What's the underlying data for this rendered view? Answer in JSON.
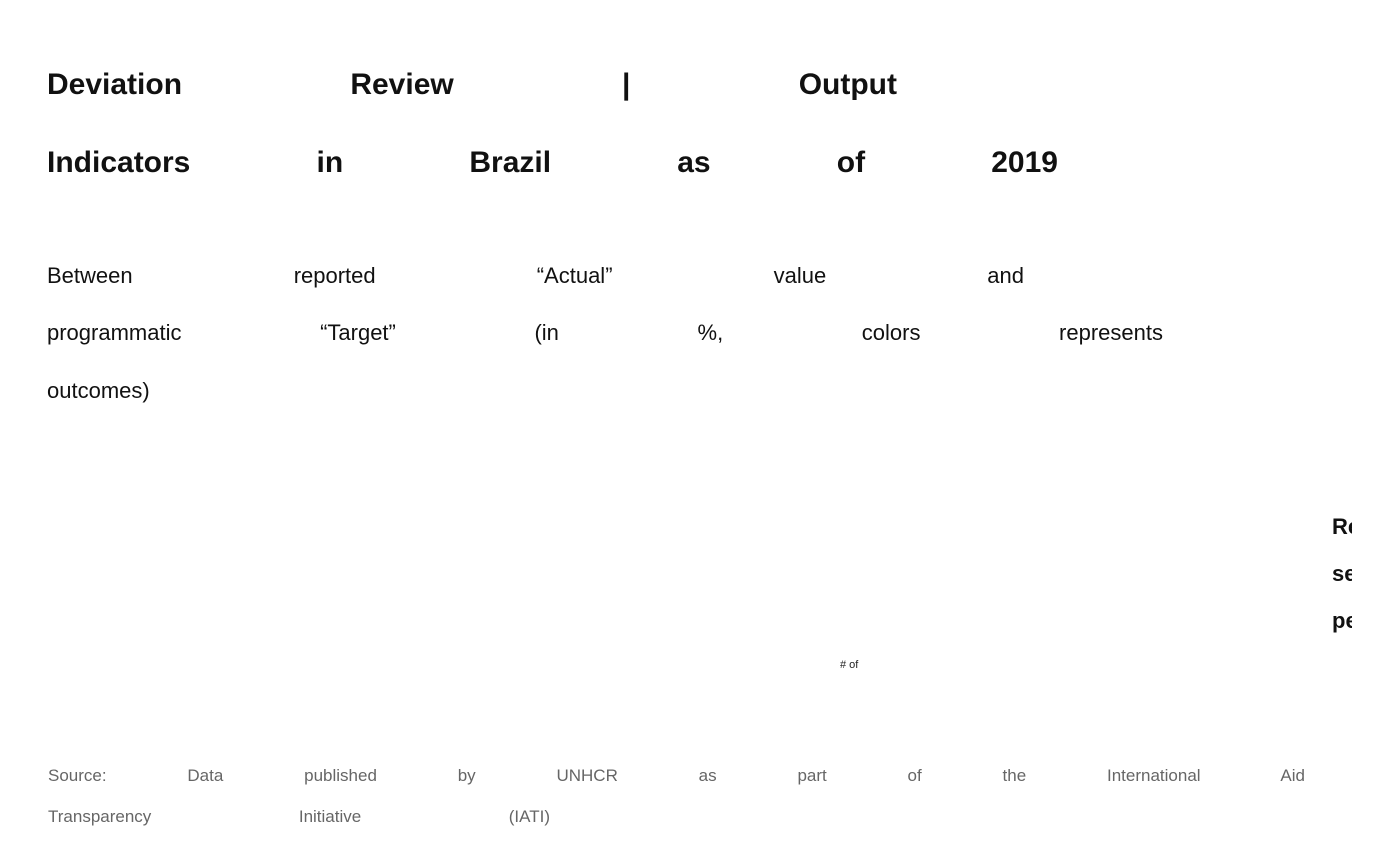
{
  "header": {
    "title_lines": [
      "Deviation Review | Output",
      "Indicators in Brazil as of 2019"
    ],
    "subtitle_lines": [
      "Between reported “Actual” value and",
      "programmatic “Target” (in %, colors represents",
      "outcomes)"
    ]
  },
  "side_panel": {
    "lines": [
      "Re",
      "se",
      "pe"
    ]
  },
  "chart_area": {
    "label": "# of"
  },
  "footer": {
    "source_lines": [
      "Source: Data published by UNHCR as part of the International Aid",
      "Transparency Initiative (IATI)"
    ]
  }
}
